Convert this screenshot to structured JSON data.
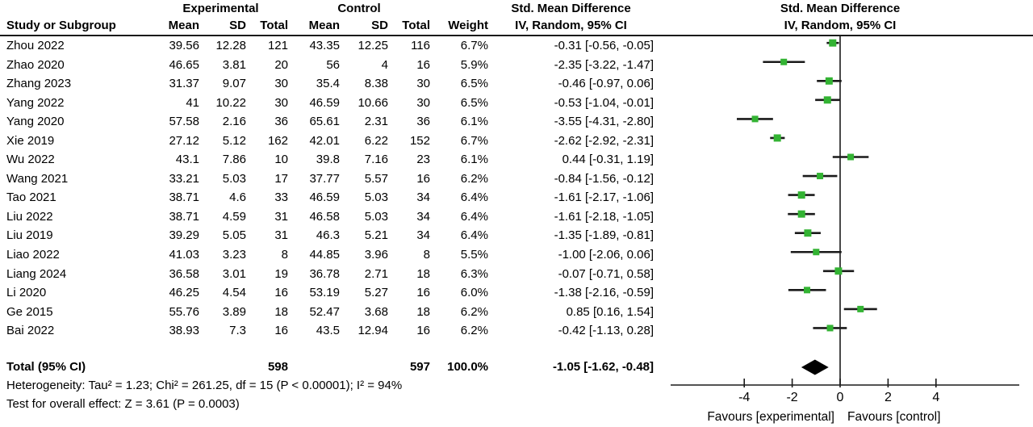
{
  "figure": {
    "header": {
      "col_study": "Study or Subgroup",
      "group_experimental": "Experimental",
      "group_control": "Control",
      "col_mean": "Mean",
      "col_sd": "SD",
      "col_total": "Total",
      "col_weight": "Weight",
      "smd_title": "Std. Mean Difference",
      "smd_method": "IV, Random, 95% CI"
    },
    "footer": {
      "heterogeneity": "Heterogeneity: Tau² = 1.23; Chi² = 261.25, df = 15 (P < 0.00001); I² = 94%",
      "overall_effect": "Test for overall effect: Z = 3.61 (P = 0.0003)"
    }
  },
  "chart_data": {
    "type": "forest",
    "effect_measure": "Std. Mean Difference",
    "model": "IV, Random, 95% CI",
    "colors": {
      "marker": "#33b333",
      "ci_line": "#1a1a1a",
      "diamond": "#000000"
    },
    "x_axis": {
      "ticks": [
        -4,
        -2,
        0,
        2,
        4
      ],
      "label_left": "Favours [experimental]",
      "label_right": "Favours [control]"
    },
    "studies": [
      {
        "study": "Zhou 2022",
        "exp_mean": "39.56",
        "exp_sd": "12.28",
        "exp_total": "121",
        "ctl_mean": "43.35",
        "ctl_sd": "12.25",
        "ctl_total": "116",
        "weight": "6.7%",
        "ci_text": "-0.31 [-0.56, -0.05]",
        "est": -0.31,
        "lo": -0.56,
        "hi": -0.05,
        "w": 6.7
      },
      {
        "study": "Zhao 2020",
        "exp_mean": "46.65",
        "exp_sd": "3.81",
        "exp_total": "20",
        "ctl_mean": "56",
        "ctl_sd": "4",
        "ctl_total": "16",
        "weight": "5.9%",
        "ci_text": "-2.35 [-3.22, -1.47]",
        "est": -2.35,
        "lo": -3.22,
        "hi": -1.47,
        "w": 5.9
      },
      {
        "study": "Zhang 2023",
        "exp_mean": "31.37",
        "exp_sd": "9.07",
        "exp_total": "30",
        "ctl_mean": "35.4",
        "ctl_sd": "8.38",
        "ctl_total": "30",
        "weight": "6.5%",
        "ci_text": "-0.46 [-0.97, 0.06]",
        "est": -0.46,
        "lo": -0.97,
        "hi": 0.06,
        "w": 6.5
      },
      {
        "study": "Yang 2022",
        "exp_mean": "41",
        "exp_sd": "10.22",
        "exp_total": "30",
        "ctl_mean": "46.59",
        "ctl_sd": "10.66",
        "ctl_total": "30",
        "weight": "6.5%",
        "ci_text": "-0.53 [-1.04, -0.01]",
        "est": -0.53,
        "lo": -1.04,
        "hi": -0.01,
        "w": 6.5
      },
      {
        "study": "Yang 2020",
        "exp_mean": "57.58",
        "exp_sd": "2.16",
        "exp_total": "36",
        "ctl_mean": "65.61",
        "ctl_sd": "2.31",
        "ctl_total": "36",
        "weight": "6.1%",
        "ci_text": "-3.55 [-4.31, -2.80]",
        "est": -3.55,
        "lo": -4.31,
        "hi": -2.8,
        "w": 6.1
      },
      {
        "study": "Xie 2019",
        "exp_mean": "27.12",
        "exp_sd": "5.12",
        "exp_total": "162",
        "ctl_mean": "42.01",
        "ctl_sd": "6.22",
        "ctl_total": "152",
        "weight": "6.7%",
        "ci_text": "-2.62 [-2.92, -2.31]",
        "est": -2.62,
        "lo": -2.92,
        "hi": -2.31,
        "w": 6.7
      },
      {
        "study": "Wu 2022",
        "exp_mean": "43.1",
        "exp_sd": "7.86",
        "exp_total": "10",
        "ctl_mean": "39.8",
        "ctl_sd": "7.16",
        "ctl_total": "23",
        "weight": "6.1%",
        "ci_text": "0.44 [-0.31, 1.19]",
        "est": 0.44,
        "lo": -0.31,
        "hi": 1.19,
        "w": 6.1
      },
      {
        "study": "Wang 2021",
        "exp_mean": "33.21",
        "exp_sd": "5.03",
        "exp_total": "17",
        "ctl_mean": "37.77",
        "ctl_sd": "5.57",
        "ctl_total": "16",
        "weight": "6.2%",
        "ci_text": "-0.84 [-1.56, -0.12]",
        "est": -0.84,
        "lo": -1.56,
        "hi": -0.12,
        "w": 6.2
      },
      {
        "study": "Tao 2021",
        "exp_mean": "38.71",
        "exp_sd": "4.6",
        "exp_total": "33",
        "ctl_mean": "46.59",
        "ctl_sd": "5.03",
        "ctl_total": "34",
        "weight": "6.4%",
        "ci_text": "-1.61 [-2.17, -1.06]",
        "est": -1.61,
        "lo": -2.17,
        "hi": -1.06,
        "w": 6.4
      },
      {
        "study": "Liu 2022",
        "exp_mean": "38.71",
        "exp_sd": "4.59",
        "exp_total": "31",
        "ctl_mean": "46.58",
        "ctl_sd": "5.03",
        "ctl_total": "34",
        "weight": "6.4%",
        "ci_text": "-1.61 [-2.18, -1.05]",
        "est": -1.61,
        "lo": -2.18,
        "hi": -1.05,
        "w": 6.4
      },
      {
        "study": "Liu 2019",
        "exp_mean": "39.29",
        "exp_sd": "5.05",
        "exp_total": "31",
        "ctl_mean": "46.3",
        "ctl_sd": "5.21",
        "ctl_total": "34",
        "weight": "6.4%",
        "ci_text": "-1.35 [-1.89, -0.81]",
        "est": -1.35,
        "lo": -1.89,
        "hi": -0.81,
        "w": 6.4
      },
      {
        "study": "Liao 2022",
        "exp_mean": "41.03",
        "exp_sd": "3.23",
        "exp_total": "8",
        "ctl_mean": "44.85",
        "ctl_sd": "3.96",
        "ctl_total": "8",
        "weight": "5.5%",
        "ci_text": "-1.00 [-2.06, 0.06]",
        "est": -1.0,
        "lo": -2.06,
        "hi": 0.06,
        "w": 5.5
      },
      {
        "study": "Liang 2024",
        "exp_mean": "36.58",
        "exp_sd": "3.01",
        "exp_total": "19",
        "ctl_mean": "36.78",
        "ctl_sd": "2.71",
        "ctl_total": "18",
        "weight": "6.3%",
        "ci_text": "-0.07 [-0.71, 0.58]",
        "est": -0.07,
        "lo": -0.71,
        "hi": 0.58,
        "w": 6.3
      },
      {
        "study": "Li 2020",
        "exp_mean": "46.25",
        "exp_sd": "4.54",
        "exp_total": "16",
        "ctl_mean": "53.19",
        "ctl_sd": "5.27",
        "ctl_total": "16",
        "weight": "6.0%",
        "ci_text": "-1.38 [-2.16, -0.59]",
        "est": -1.38,
        "lo": -2.16,
        "hi": -0.59,
        "w": 6.0
      },
      {
        "study": "Ge 2015",
        "exp_mean": "55.76",
        "exp_sd": "3.89",
        "exp_total": "18",
        "ctl_mean": "52.47",
        "ctl_sd": "3.68",
        "ctl_total": "18",
        "weight": "6.2%",
        "ci_text": "0.85 [0.16, 1.54]",
        "est": 0.85,
        "lo": 0.16,
        "hi": 1.54,
        "w": 6.2
      },
      {
        "study": "Bai 2022",
        "exp_mean": "38.93",
        "exp_sd": "7.3",
        "exp_total": "16",
        "ctl_mean": "43.5",
        "ctl_sd": "12.94",
        "ctl_total": "16",
        "weight": "6.2%",
        "ci_text": "-0.42 [-1.13, 0.28]",
        "est": -0.42,
        "lo": -1.13,
        "hi": 0.28,
        "w": 6.2
      }
    ],
    "total": {
      "label": "Total (95% CI)",
      "exp_total": "598",
      "ctl_total": "597",
      "weight": "100.0%",
      "ci_text": "-1.05 [-1.62, -0.48]",
      "est": -1.05,
      "lo": -1.62,
      "hi": -0.48
    }
  }
}
